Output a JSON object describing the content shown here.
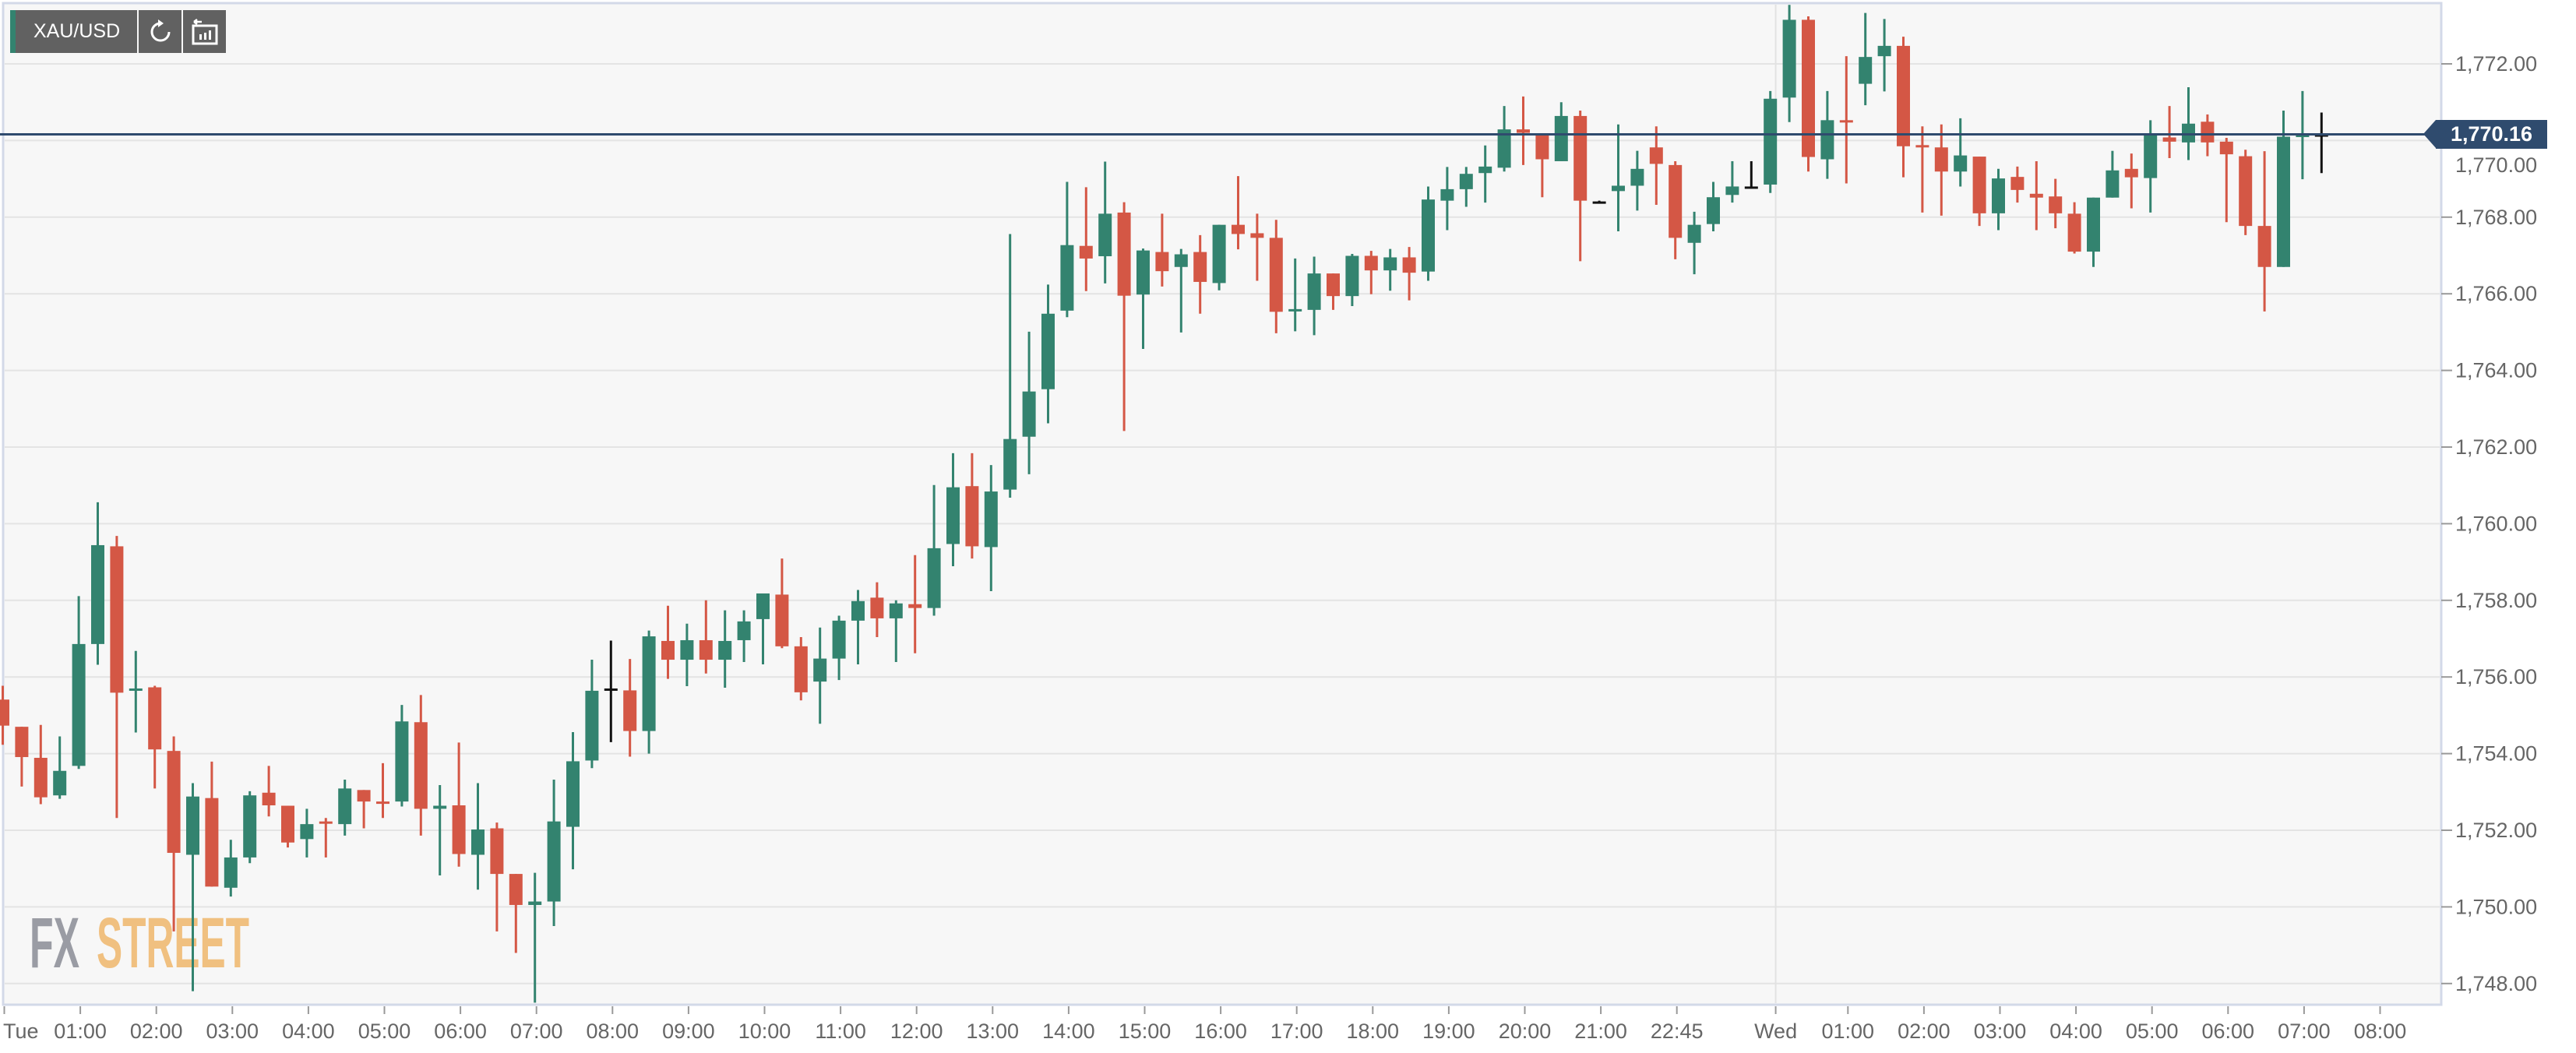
{
  "toolbar": {
    "symbol": "XAU/USD",
    "refresh_icon": "refresh-icon",
    "chart_type_icon": "bar-chart-back-icon"
  },
  "watermark": {
    "part1": "FX",
    "part2": "STREET"
  },
  "current_price_label": "1,770.16",
  "colors": {
    "up": "#33836f",
    "down": "#d45745",
    "neutral": "#111111",
    "price_line": "#2f4b6e",
    "plot_bg": "#f7f7f7",
    "grid": "#e4e4e4"
  },
  "chart_data": {
    "type": "candlestick",
    "title": "",
    "interval": "15 min",
    "current_price": 1770.16,
    "ylim": [
      1747.3,
      1773.7
    ],
    "grid": true,
    "y_ticks": [
      {
        "value": 1748,
        "label": "1,748.00"
      },
      {
        "value": 1750,
        "label": "1,750.00"
      },
      {
        "value": 1752,
        "label": "1,752.00"
      },
      {
        "value": 1754,
        "label": "1,754.00"
      },
      {
        "value": 1756,
        "label": "1,756.00"
      },
      {
        "value": 1758,
        "label": "1,758.00"
      },
      {
        "value": 1760,
        "label": "1,760.00"
      },
      {
        "value": 1762,
        "label": "1,762.00"
      },
      {
        "value": 1764,
        "label": "1,764.00"
      },
      {
        "value": 1766,
        "label": "1,766.00"
      },
      {
        "value": 1768,
        "label": "1,768.00"
      },
      {
        "value": 1770,
        "label": "1,770.00"
      },
      {
        "value": 1772,
        "label": "1,772.00"
      }
    ],
    "x_ticks": [
      {
        "index": 0,
        "label": "Tue"
      },
      {
        "index": 4,
        "label": "01:00"
      },
      {
        "index": 8,
        "label": "02:00"
      },
      {
        "index": 12,
        "label": "03:00"
      },
      {
        "index": 16,
        "label": "04:00"
      },
      {
        "index": 20,
        "label": "05:00"
      },
      {
        "index": 24,
        "label": "06:00"
      },
      {
        "index": 28,
        "label": "07:00"
      },
      {
        "index": 32,
        "label": "08:00"
      },
      {
        "index": 36,
        "label": "09:00"
      },
      {
        "index": 40,
        "label": "10:00"
      },
      {
        "index": 44,
        "label": "11:00"
      },
      {
        "index": 48,
        "label": "12:00"
      },
      {
        "index": 52,
        "label": "13:00"
      },
      {
        "index": 56,
        "label": "14:00"
      },
      {
        "index": 60,
        "label": "15:00"
      },
      {
        "index": 64,
        "label": "16:00"
      },
      {
        "index": 68,
        "label": "17:00"
      },
      {
        "index": 72,
        "label": "18:00"
      },
      {
        "index": 76,
        "label": "19:00"
      },
      {
        "index": 80,
        "label": "20:00"
      },
      {
        "index": 84,
        "label": "21:00"
      },
      {
        "index": 88,
        "label": "22:45"
      },
      {
        "index": 93.2,
        "label": "Wed",
        "day_line": true
      },
      {
        "index": 97,
        "label": "01:00"
      },
      {
        "index": 101,
        "label": "02:00"
      },
      {
        "index": 105,
        "label": "03:00"
      },
      {
        "index": 109,
        "label": "04:00"
      },
      {
        "index": 113,
        "label": "05:00"
      },
      {
        "index": 117,
        "label": "06:00"
      },
      {
        "index": 121,
        "label": "07:00"
      },
      {
        "index": 125,
        "label": "08:00"
      }
    ],
    "candles_ohlc": [
      [
        1755.41,
        1755.77,
        1754.23,
        1754.73
      ],
      [
        1754.7,
        1754.7,
        1753.14,
        1753.91
      ],
      [
        1753.89,
        1754.75,
        1752.68,
        1752.86
      ],
      [
        1752.91,
        1754.45,
        1752.82,
        1753.55
      ],
      [
        1753.68,
        1758.11,
        1753.6,
        1756.86
      ],
      [
        1756.86,
        1760.56,
        1756.32,
        1759.44
      ],
      [
        1759.41,
        1759.68,
        1752.32,
        1755.59
      ],
      [
        1755.65,
        1756.68,
        1754.55,
        1755.7
      ],
      [
        1755.73,
        1755.77,
        1753.09,
        1754.11
      ],
      [
        1754.07,
        1754.45,
        1749.36,
        1751.41
      ],
      [
        1751.36,
        1753.23,
        1747.8,
        1752.88
      ],
      [
        1752.84,
        1753.79,
        1750.53,
        1750.53
      ],
      [
        1750.5,
        1751.75,
        1750.27,
        1751.29
      ],
      [
        1751.29,
        1753.02,
        1751.14,
        1752.91
      ],
      [
        1752.98,
        1753.68,
        1752.36,
        1752.65
      ],
      [
        1752.64,
        1752.64,
        1751.55,
        1751.68
      ],
      [
        1751.77,
        1752.56,
        1751.29,
        1752.16
      ],
      [
        1752.23,
        1752.32,
        1751.29,
        1752.18
      ],
      [
        1752.16,
        1753.32,
        1751.86,
        1753.09
      ],
      [
        1753.05,
        1753.05,
        1752.05,
        1752.75
      ],
      [
        1752.75,
        1753.75,
        1752.32,
        1752.7
      ],
      [
        1752.75,
        1755.27,
        1752.62,
        1754.84
      ],
      [
        1754.82,
        1755.53,
        1751.86,
        1752.56
      ],
      [
        1752.56,
        1753.18,
        1750.82,
        1752.64
      ],
      [
        1752.65,
        1754.29,
        1751.05,
        1751.38
      ],
      [
        1751.36,
        1753.23,
        1750.45,
        1752.02
      ],
      [
        1752.05,
        1752.2,
        1749.36,
        1750.86
      ],
      [
        1750.86,
        1750.86,
        1748.8,
        1750.05
      ],
      [
        1750.05,
        1750.89,
        1747.5,
        1750.14
      ],
      [
        1750.14,
        1753.32,
        1749.5,
        1752.23
      ],
      [
        1752.09,
        1754.56,
        1750.98,
        1753.8
      ],
      [
        1753.82,
        1756.45,
        1753.62,
        1755.64
      ],
      [
        1755.7,
        1756.95,
        1754.3,
        1755.7
      ],
      [
        1755.65,
        1756.47,
        1753.92,
        1754.59
      ],
      [
        1754.59,
        1757.21,
        1754.0,
        1757.06
      ],
      [
        1756.94,
        1757.86,
        1755.95,
        1756.45
      ],
      [
        1756.45,
        1757.39,
        1755.76,
        1756.96
      ],
      [
        1756.96,
        1758.0,
        1756.09,
        1756.45
      ],
      [
        1756.45,
        1757.74,
        1755.72,
        1756.94
      ],
      [
        1756.96,
        1757.74,
        1756.39,
        1757.45
      ],
      [
        1757.51,
        1758.18,
        1756.33,
        1758.18
      ],
      [
        1758.15,
        1759.09,
        1756.75,
        1756.8
      ],
      [
        1756.8,
        1757.04,
        1755.39,
        1755.6
      ],
      [
        1755.88,
        1757.29,
        1754.78,
        1756.48
      ],
      [
        1756.48,
        1757.6,
        1755.92,
        1757.47
      ],
      [
        1757.47,
        1758.27,
        1756.33,
        1757.98
      ],
      [
        1758.07,
        1758.47,
        1757.04,
        1757.53
      ],
      [
        1757.53,
        1758.0,
        1756.39,
        1757.92
      ],
      [
        1757.9,
        1759.18,
        1756.62,
        1757.8
      ],
      [
        1757.8,
        1761.01,
        1757.6,
        1759.36
      ],
      [
        1759.47,
        1761.84,
        1758.89,
        1760.95
      ],
      [
        1760.98,
        1761.84,
        1759.09,
        1759.41
      ],
      [
        1759.39,
        1761.53,
        1758.24,
        1760.84
      ],
      [
        1760.89,
        1767.56,
        1760.68,
        1762.21
      ],
      [
        1762.27,
        1765.01,
        1761.29,
        1763.45
      ],
      [
        1763.51,
        1766.24,
        1762.62,
        1765.48
      ],
      [
        1765.56,
        1768.92,
        1765.39,
        1767.27
      ],
      [
        1767.25,
        1768.78,
        1766.07,
        1766.92
      ],
      [
        1766.98,
        1769.45,
        1766.27,
        1768.09
      ],
      [
        1768.12,
        1768.39,
        1762.42,
        1765.95
      ],
      [
        1765.98,
        1767.18,
        1764.56,
        1767.13
      ],
      [
        1767.09,
        1768.09,
        1766.19,
        1766.59
      ],
      [
        1766.7,
        1767.17,
        1764.99,
        1767.03
      ],
      [
        1767.09,
        1767.53,
        1765.48,
        1766.31
      ],
      [
        1766.28,
        1767.8,
        1766.09,
        1767.8
      ],
      [
        1767.8,
        1769.07,
        1767.16,
        1767.56
      ],
      [
        1767.58,
        1768.09,
        1766.34,
        1767.46
      ],
      [
        1767.46,
        1767.93,
        1764.97,
        1765.53
      ],
      [
        1765.55,
        1766.92,
        1765.02,
        1765.6
      ],
      [
        1765.58,
        1766.97,
        1764.92,
        1766.53
      ],
      [
        1766.53,
        1766.53,
        1765.58,
        1765.94
      ],
      [
        1765.94,
        1767.04,
        1765.68,
        1766.99
      ],
      [
        1766.99,
        1767.12,
        1765.99,
        1766.61
      ],
      [
        1766.61,
        1767.17,
        1766.08,
        1766.95
      ],
      [
        1766.95,
        1767.22,
        1765.83,
        1766.55
      ],
      [
        1766.58,
        1768.8,
        1766.34,
        1768.46
      ],
      [
        1768.43,
        1769.31,
        1767.66,
        1768.73
      ],
      [
        1768.73,
        1769.31,
        1768.27,
        1769.13
      ],
      [
        1769.15,
        1769.87,
        1768.38,
        1769.32
      ],
      [
        1769.29,
        1770.9,
        1769.19,
        1770.29
      ],
      [
        1770.29,
        1771.15,
        1769.36,
        1770.2
      ],
      [
        1770.17,
        1770.17,
        1768.52,
        1769.51
      ],
      [
        1769.46,
        1771.0,
        1769.46,
        1770.64
      ],
      [
        1770.64,
        1770.78,
        1766.85,
        1768.43
      ],
      [
        1768.41,
        1768.43,
        1768.39,
        1768.41
      ],
      [
        1768.68,
        1770.42,
        1767.63,
        1768.82
      ],
      [
        1768.82,
        1769.73,
        1768.17,
        1769.26
      ],
      [
        1769.82,
        1770.37,
        1768.32,
        1769.39
      ],
      [
        1769.36,
        1769.46,
        1766.9,
        1767.46
      ],
      [
        1767.33,
        1768.14,
        1766.51,
        1767.8
      ],
      [
        1767.82,
        1768.92,
        1767.63,
        1768.52
      ],
      [
        1768.58,
        1769.46,
        1768.38,
        1768.8
      ],
      [
        1768.8,
        1769.46,
        1768.77,
        1768.8
      ],
      [
        1768.85,
        1771.29,
        1768.63,
        1771.09
      ],
      [
        1771.12,
        1773.54,
        1770.48,
        1773.15
      ],
      [
        1773.15,
        1773.24,
        1769.19,
        1769.57
      ],
      [
        1769.51,
        1771.29,
        1769.0,
        1770.53
      ],
      [
        1770.53,
        1772.2,
        1768.88,
        1770.48
      ],
      [
        1771.48,
        1773.33,
        1770.92,
        1772.18
      ],
      [
        1772.2,
        1773.17,
        1771.28,
        1772.47
      ],
      [
        1772.47,
        1772.71,
        1769.04,
        1769.85
      ],
      [
        1769.88,
        1770.37,
        1768.12,
        1769.83
      ],
      [
        1769.82,
        1770.42,
        1768.04,
        1769.19
      ],
      [
        1769.19,
        1770.58,
        1768.8,
        1769.61
      ],
      [
        1769.58,
        1769.58,
        1767.77,
        1768.1
      ],
      [
        1768.1,
        1769.26,
        1767.66,
        1769.01
      ],
      [
        1769.05,
        1769.32,
        1768.38,
        1768.71
      ],
      [
        1768.61,
        1769.46,
        1767.66,
        1768.51
      ],
      [
        1768.54,
        1769.0,
        1767.71,
        1768.1
      ],
      [
        1768.09,
        1768.39,
        1767.05,
        1767.1
      ],
      [
        1767.1,
        1768.51,
        1766.7,
        1768.51
      ],
      [
        1768.51,
        1769.73,
        1768.51,
        1769.22
      ],
      [
        1769.26,
        1769.66,
        1768.23,
        1769.04
      ],
      [
        1769.02,
        1770.53,
        1768.12,
        1770.17
      ],
      [
        1770.08,
        1770.9,
        1769.54,
        1769.97
      ],
      [
        1769.95,
        1771.39,
        1769.49,
        1770.44
      ],
      [
        1770.49,
        1770.68,
        1769.59,
        1769.95
      ],
      [
        1769.97,
        1770.07,
        1767.87,
        1769.64
      ],
      [
        1769.59,
        1769.76,
        1767.53,
        1767.77
      ],
      [
        1767.77,
        1769.72,
        1765.54,
        1766.7
      ],
      [
        1766.7,
        1770.78,
        1766.7,
        1770.1
      ],
      [
        1770.1,
        1771.29,
        1768.99,
        1770.15
      ],
      [
        1770.16,
        1770.73,
        1769.15,
        1770.16
      ]
    ]
  }
}
